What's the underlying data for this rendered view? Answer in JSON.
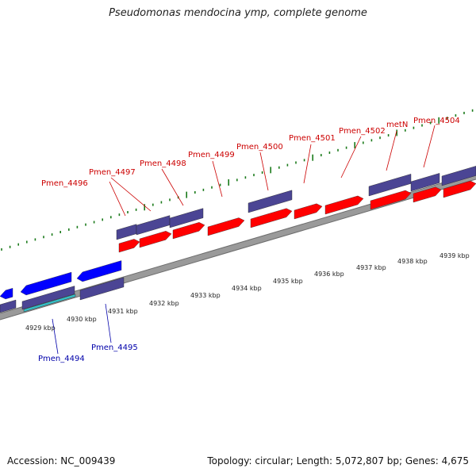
{
  "title": "Pseudomonas mendocina ymp, complete genome",
  "footer": {
    "accession": "Accession: NC_009439",
    "summary": "Topology: circular; Length: 5,072,807 bp; Genes: 4,675"
  },
  "colors": {
    "forward_cds": "#ff0000",
    "reverse_cds": "#0000ff",
    "cog_bar": "#4b4594",
    "backbone": "#808080",
    "tick": "#1a7a1a",
    "forward_label": "#cc0000",
    "reverse_label": "#0000aa",
    "rna_band": "#35c0c8"
  },
  "scale_labels": [
    "4929 kbp",
    "4930 kbp",
    "4931 kbp",
    "4932 kbp",
    "4933 kbp",
    "4934 kbp",
    "4935 kbp",
    "4936 kbp",
    "4937 kbp",
    "4938 kbp",
    "4939 kbp"
  ],
  "forward_gene_labels": [
    "Pmen_4496",
    "Pmen_4497",
    "Pmen_4498",
    "Pmen_4499",
    "Pmen_4500",
    "Pmen_4501",
    "Pmen_4502",
    "metN",
    "Pmen_4504"
  ],
  "reverse_gene_labels": [
    "Pmen_4494",
    "Pmen_4495"
  ]
}
